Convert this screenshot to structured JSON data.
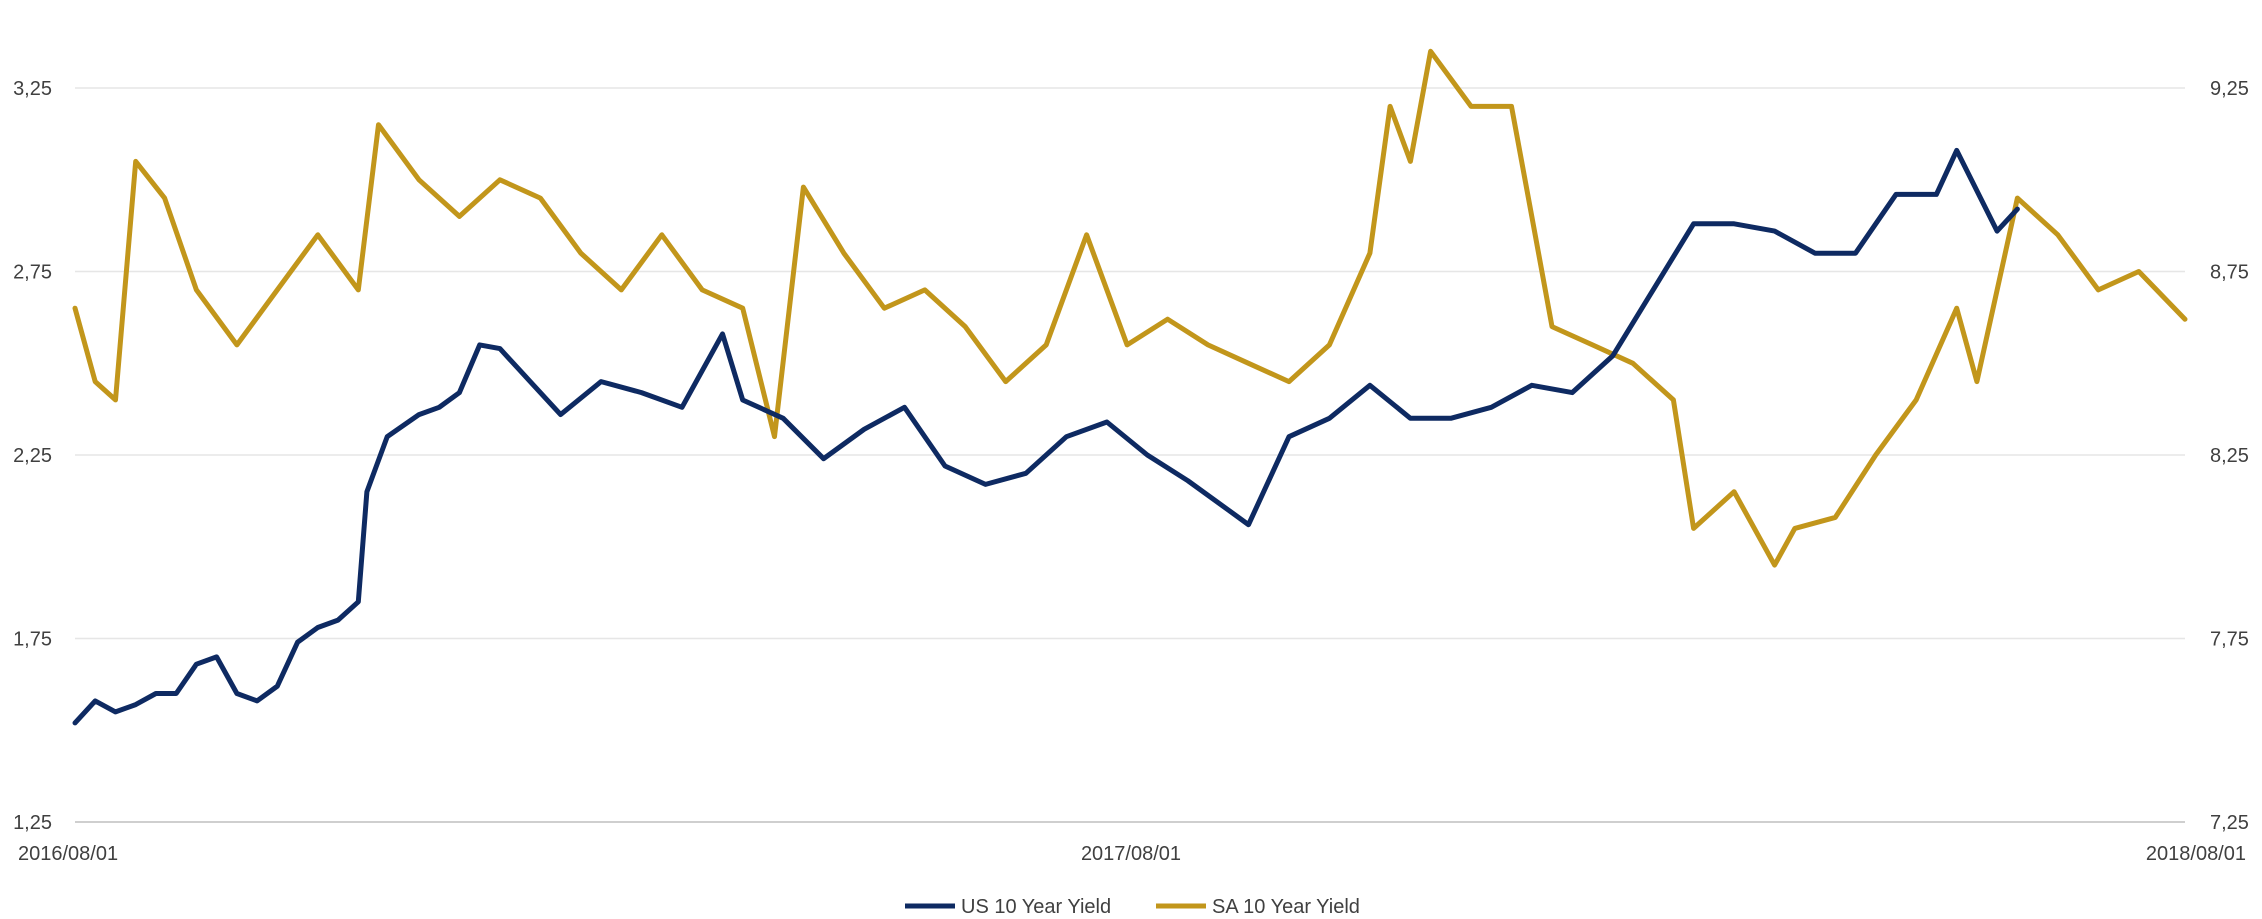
{
  "chart_data": {
    "type": "line",
    "title": "",
    "xlabel": "",
    "ylabel": "",
    "x_ticks": [
      "2016/08/01",
      "2017/08/01",
      "2018/08/01"
    ],
    "y_left": {
      "ticks": [
        "1,25",
        "1,75",
        "2,25",
        "2,75",
        "3,25"
      ],
      "ylim": [
        1.25,
        3.25
      ]
    },
    "y_right": {
      "ticks": [
        "7,25",
        "7,75",
        "8,25",
        "8,75",
        "9,25"
      ],
      "ylim": [
        7.25,
        9.25
      ]
    },
    "xlim": [
      "2016-08-01",
      "2018-08-01"
    ],
    "grid": "horizontal",
    "legend_position": "bottom-center",
    "colors": {
      "us": "#0e2a62",
      "sa": "#c2961b",
      "grid": "#e6e6e6",
      "axis": "#bfbfbf"
    },
    "series": [
      {
        "name": "US 10 Year Yield",
        "axis": "left",
        "points": [
          [
            "2016-08-01",
            1.52
          ],
          [
            "2016-08-08",
            1.58
          ],
          [
            "2016-08-15",
            1.55
          ],
          [
            "2016-08-22",
            1.57
          ],
          [
            "2016-08-29",
            1.6
          ],
          [
            "2016-09-05",
            1.6
          ],
          [
            "2016-09-12",
            1.68
          ],
          [
            "2016-09-19",
            1.7
          ],
          [
            "2016-09-26",
            1.6
          ],
          [
            "2016-10-03",
            1.58
          ],
          [
            "2016-10-10",
            1.62
          ],
          [
            "2016-10-17",
            1.74
          ],
          [
            "2016-10-24",
            1.78
          ],
          [
            "2016-10-31",
            1.8
          ],
          [
            "2016-11-07",
            1.85
          ],
          [
            "2016-11-10",
            2.15
          ],
          [
            "2016-11-17",
            2.3
          ],
          [
            "2016-11-28",
            2.36
          ],
          [
            "2016-12-05",
            2.38
          ],
          [
            "2016-12-12",
            2.42
          ],
          [
            "2016-12-19",
            2.55
          ],
          [
            "2016-12-26",
            2.54
          ],
          [
            "2017-01-02",
            2.48
          ],
          [
            "2017-01-16",
            2.36
          ],
          [
            "2017-01-30",
            2.45
          ],
          [
            "2017-02-13",
            2.42
          ],
          [
            "2017-02-27",
            2.38
          ],
          [
            "2017-03-13",
            2.58
          ],
          [
            "2017-03-20",
            2.4
          ],
          [
            "2017-04-03",
            2.35
          ],
          [
            "2017-04-17",
            2.24
          ],
          [
            "2017-05-01",
            2.32
          ],
          [
            "2017-05-15",
            2.38
          ],
          [
            "2017-05-29",
            2.22
          ],
          [
            "2017-06-12",
            2.17
          ],
          [
            "2017-06-26",
            2.2
          ],
          [
            "2017-07-10",
            2.3
          ],
          [
            "2017-07-24",
            2.34
          ],
          [
            "2017-08-07",
            2.25
          ],
          [
            "2017-08-21",
            2.18
          ],
          [
            "2017-09-04",
            2.1
          ],
          [
            "2017-09-11",
            2.06
          ],
          [
            "2017-09-25",
            2.3
          ],
          [
            "2017-10-09",
            2.35
          ],
          [
            "2017-10-23",
            2.44
          ],
          [
            "2017-11-06",
            2.35
          ],
          [
            "2017-11-20",
            2.35
          ],
          [
            "2017-12-04",
            2.38
          ],
          [
            "2017-12-18",
            2.44
          ],
          [
            "2018-01-01",
            2.42
          ],
          [
            "2018-01-15",
            2.52
          ],
          [
            "2018-01-29",
            2.7
          ],
          [
            "2018-02-12",
            2.88
          ],
          [
            "2018-02-26",
            2.88
          ],
          [
            "2018-03-12",
            2.86
          ],
          [
            "2018-03-26",
            2.8
          ],
          [
            "2018-04-09",
            2.8
          ],
          [
            "2018-04-23",
            2.96
          ],
          [
            "2018-05-07",
            2.96
          ],
          [
            "2018-05-14",
            3.08
          ],
          [
            "2018-05-28",
            2.86
          ],
          [
            "2018-06-04",
            2.92
          ]
        ]
      },
      {
        "name": "SA 10 Year Yield",
        "axis": "right",
        "points": [
          [
            "2016-08-01",
            8.65
          ],
          [
            "2016-08-08",
            8.45
          ],
          [
            "2016-08-15",
            8.4
          ],
          [
            "2016-08-22",
            9.05
          ],
          [
            "2016-09-01",
            8.95
          ],
          [
            "2016-09-12",
            8.7
          ],
          [
            "2016-09-26",
            8.55
          ],
          [
            "2016-10-10",
            8.7
          ],
          [
            "2016-10-24",
            8.85
          ],
          [
            "2016-11-07",
            8.7
          ],
          [
            "2016-11-14",
            9.15
          ],
          [
            "2016-11-28",
            9.0
          ],
          [
            "2016-12-12",
            8.9
          ],
          [
            "2016-12-26",
            9.0
          ],
          [
            "2017-01-09",
            8.95
          ],
          [
            "2017-01-23",
            8.8
          ],
          [
            "2017-02-06",
            8.7
          ],
          [
            "2017-02-20",
            8.85
          ],
          [
            "2017-03-06",
            8.7
          ],
          [
            "2017-03-20",
            8.65
          ],
          [
            "2017-03-31",
            8.3
          ],
          [
            "2017-04-10",
            8.98
          ],
          [
            "2017-04-24",
            8.8
          ],
          [
            "2017-05-08",
            8.65
          ],
          [
            "2017-05-22",
            8.7
          ],
          [
            "2017-06-05",
            8.6
          ],
          [
            "2017-06-19",
            8.45
          ],
          [
            "2017-07-03",
            8.55
          ],
          [
            "2017-07-17",
            8.85
          ],
          [
            "2017-07-31",
            8.55
          ],
          [
            "2017-08-14",
            8.62
          ],
          [
            "2017-08-28",
            8.55
          ],
          [
            "2017-09-11",
            8.5
          ],
          [
            "2017-09-25",
            8.45
          ],
          [
            "2017-10-09",
            8.55
          ],
          [
            "2017-10-23",
            8.8
          ],
          [
            "2017-10-30",
            9.2
          ],
          [
            "2017-11-06",
            9.05
          ],
          [
            "2017-11-13",
            9.35
          ],
          [
            "2017-11-27",
            9.2
          ],
          [
            "2017-12-11",
            9.2
          ],
          [
            "2017-12-18",
            8.9
          ],
          [
            "2017-12-25",
            8.6
          ],
          [
            "2018-01-08",
            8.55
          ],
          [
            "2018-01-22",
            8.5
          ],
          [
            "2018-02-05",
            8.4
          ],
          [
            "2018-02-12",
            8.05
          ],
          [
            "2018-02-26",
            8.15
          ],
          [
            "2018-03-12",
            7.95
          ],
          [
            "2018-03-19",
            8.05
          ],
          [
            "2018-04-02",
            8.08
          ],
          [
            "2018-04-16",
            8.25
          ],
          [
            "2018-04-30",
            8.4
          ],
          [
            "2018-05-14",
            8.65
          ],
          [
            "2018-05-21",
            8.45
          ],
          [
            "2018-06-04",
            8.95
          ],
          [
            "2018-06-18",
            8.85
          ],
          [
            "2018-07-02",
            8.7
          ],
          [
            "2018-07-16",
            8.75
          ],
          [
            "2018-08-01",
            8.62
          ]
        ]
      }
    ]
  }
}
